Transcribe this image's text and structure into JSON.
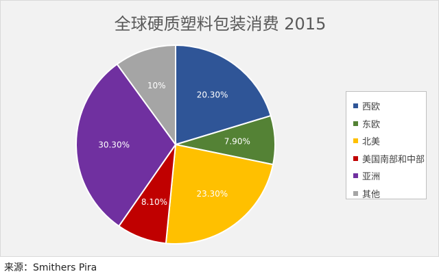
{
  "chart_data": {
    "type": "pie",
    "title": "全球硬质塑料包装消费 2015",
    "slices": [
      {
        "label": "西欧",
        "value": 20.3,
        "display": "20.30%",
        "color": "#2f5597"
      },
      {
        "label": "东欧",
        "value": 7.9,
        "display": "7.90%",
        "color": "#548235"
      },
      {
        "label": "北美",
        "value": 23.3,
        "display": "23.30%",
        "color": "#ffc000"
      },
      {
        "label": "美国南部和中部",
        "value": 8.1,
        "display": "8.10%",
        "color": "#c00000"
      },
      {
        "label": "亚洲",
        "value": 30.3,
        "display": "30.30%",
        "color": "#7030a0"
      },
      {
        "label": "其他",
        "value": 10.0,
        "display": "10%",
        "color": "#a5a5a5"
      }
    ],
    "legend_position": "right",
    "start_angle": "top, clockwise"
  },
  "source": "来源：Smithers Pira"
}
